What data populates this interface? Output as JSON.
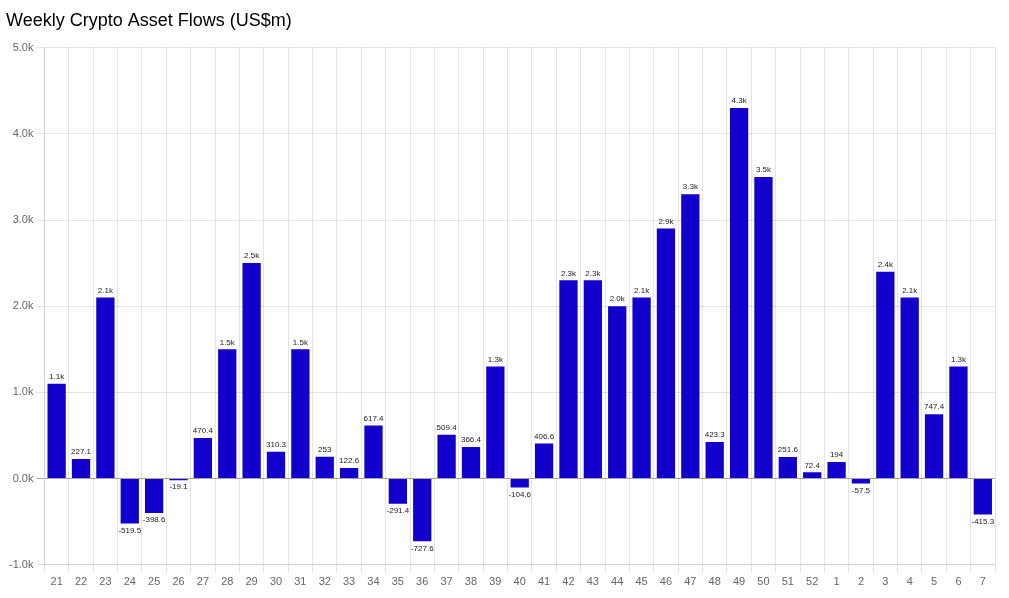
{
  "chart_data": {
    "type": "bar",
    "title": "Weekly Crypto Asset Flows (US$m)",
    "categories": [
      "21",
      "22",
      "23",
      "24",
      "25",
      "26",
      "27",
      "28",
      "29",
      "30",
      "31",
      "32",
      "33",
      "34",
      "35",
      "36",
      "37",
      "38",
      "39",
      "40",
      "41",
      "42",
      "43",
      "44",
      "45",
      "46",
      "47",
      "48",
      "49",
      "50",
      "51",
      "52",
      "1",
      "2",
      "3",
      "4",
      "5",
      "6",
      "7"
    ],
    "values": [
      1100,
      227.1,
      2100,
      -519.5,
      -398.6,
      -19.1,
      470.4,
      1500,
      2500,
      310.3,
      1500,
      253.0,
      122.6,
      617.4,
      -291.4,
      -727.6,
      509.4,
      366.4,
      1300,
      -104.6,
      406.6,
      2300,
      2300,
      2000,
      2100,
      2900,
      3300,
      423.3,
      4300,
      3500,
      251.6,
      72.4,
      194.0,
      -57.5,
      2400,
      2100,
      747.4,
      1300,
      -415.3
    ],
    "value_labels": [
      "1.1k",
      "227.1",
      "2.1k",
      "-519.5",
      "-398.6",
      "-19.1",
      "470.4",
      "1.5k",
      "2.5k",
      "310.3",
      "1.5k",
      "253",
      "122.6",
      "617.4",
      "-291.4",
      "-727.6",
      "509.4",
      "366.4",
      "1.3k",
      "-104.6",
      "406.6",
      "2.3k",
      "2.3k",
      "2.0k",
      "2.1k",
      "2.9k",
      "3.3k",
      "423.3",
      "4.3k",
      "3.5k",
      "251.6",
      "72.4",
      "194",
      "-57.5",
      "2.4k",
      "2.1k",
      "747.4",
      "1.3k",
      "-415.3"
    ],
    "color": "#1200cc",
    "ylim": [
      -1000,
      5000
    ],
    "yticks": [
      {
        "value": -1000,
        "label": "-1.0k"
      },
      {
        "value": 0,
        "label": "0.0k"
      },
      {
        "value": 1000,
        "label": "1.0k"
      },
      {
        "value": 2000,
        "label": "2.0k"
      },
      {
        "value": 3000,
        "label": "3.0k"
      },
      {
        "value": 4000,
        "label": "4.0k"
      },
      {
        "value": 5000,
        "label": "5.0k"
      }
    ],
    "grid": true,
    "data_labels": true
  }
}
